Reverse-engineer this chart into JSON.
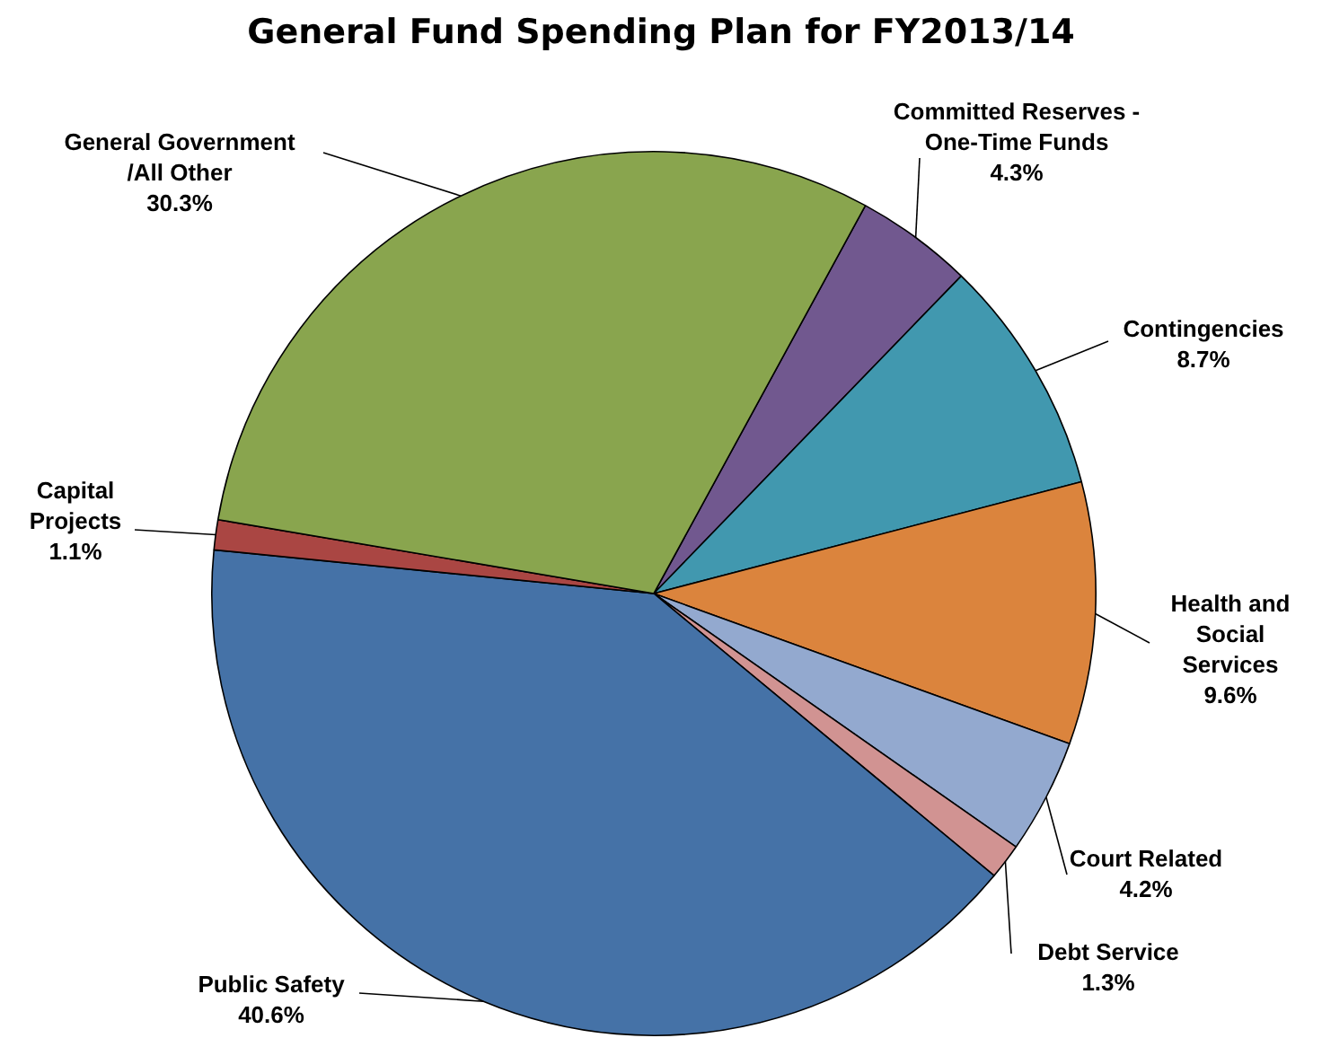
{
  "chart_data": {
    "type": "pie",
    "title": "General Fund Spending Plan for FY2013/14",
    "categories": [
      "Committed Reserves - One-Time Funds",
      "Contingencies",
      "Health and Social Services",
      "Court Related",
      "Debt Service",
      "Public Safety",
      "Capital Projects",
      "General Government /All Other"
    ],
    "values": [
      4.3,
      8.7,
      9.6,
      4.2,
      1.3,
      40.6,
      1.1,
      30.3
    ],
    "value_labels": [
      "4.3%",
      "8.7%",
      "9.6%",
      "4.2%",
      "1.3%",
      "40.6%",
      "1.1%",
      "30.3%"
    ],
    "colors": [
      "#71588f",
      "#4198af",
      "#db843d",
      "#93a9cf",
      "#d19392",
      "#4572a7",
      "#aa4643",
      "#89a54e"
    ],
    "legend": false
  }
}
